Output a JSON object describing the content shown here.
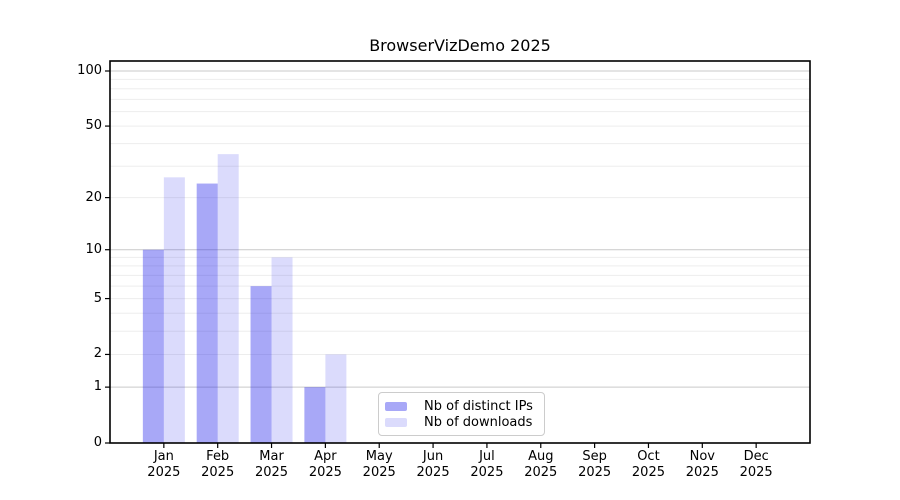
{
  "chart_data": {
    "type": "bar",
    "title": "BrowserVizDemo 2025",
    "categories": [
      "Jan\n2025",
      "Feb\n2025",
      "Mar\n2025",
      "Apr\n2025",
      "May\n2025",
      "Jun\n2025",
      "Jul\n2025",
      "Aug\n2025",
      "Sep\n2025",
      "Oct\n2025",
      "Nov\n2025",
      "Dec\n2025"
    ],
    "series": [
      {
        "name": "Nb of distinct IPs",
        "color": "rgba(30,30,235,0.39)",
        "values": [
          10,
          24,
          6,
          1,
          0,
          0,
          0,
          0,
          0,
          0,
          0,
          0
        ]
      },
      {
        "name": "Nb of downloads",
        "color": "rgba(30,30,235,0.16)",
        "values": [
          26,
          35,
          9,
          2,
          0,
          0,
          0,
          0,
          0,
          0,
          0,
          0
        ]
      }
    ],
    "yscale": "log1p",
    "ylim": [
      0,
      100
    ],
    "yticks": [
      0,
      1,
      2,
      5,
      10,
      20,
      50,
      100
    ],
    "grid": true,
    "grid_major_values": [
      1,
      10,
      100
    ],
    "grid_minor_values": [
      2,
      3,
      4,
      5,
      6,
      7,
      8,
      9,
      20,
      30,
      40,
      50,
      60,
      70,
      80,
      90
    ],
    "legend_position": "inside-bottom-center",
    "colors": {
      "axis": "#000000",
      "tick_label": "#000000",
      "grid_major": "#c9c9c9",
      "grid_minor": "#ededed",
      "background": "#ffffff"
    }
  }
}
